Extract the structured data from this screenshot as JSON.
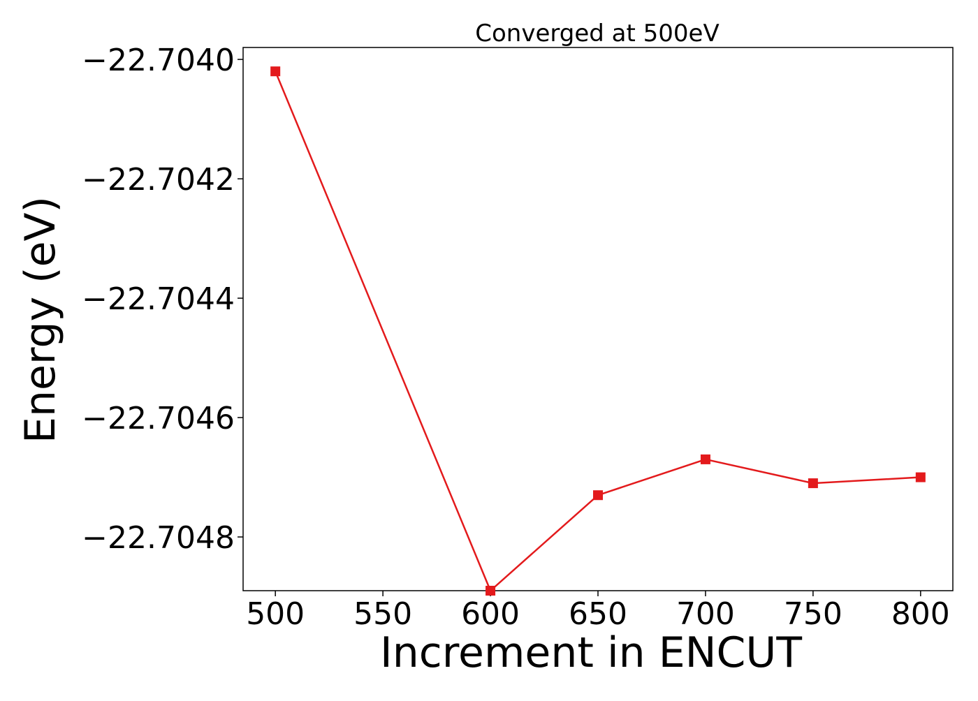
{
  "chart_data": {
    "type": "line",
    "title": "Converged at 500eV",
    "xlabel": "Increment in ENCUT",
    "ylabel": "Energy (eV)",
    "x": [
      500,
      600,
      650,
      700,
      750,
      800
    ],
    "series": [
      {
        "values": [
          -22.70402,
          -22.70489,
          -22.70473,
          -22.70467,
          -22.70471,
          -22.7047
        ],
        "color": "#e31a1c",
        "marker": "square"
      }
    ],
    "xlim": [
      485,
      815
    ],
    "ylim": [
      -22.70489,
      -22.70398
    ],
    "xticks": [
      500,
      550,
      600,
      650,
      700,
      750,
      800
    ],
    "xtick_labels": [
      "500",
      "550",
      "600",
      "650",
      "700",
      "750",
      "800"
    ],
    "yticks": [
      -22.704,
      -22.7042,
      -22.7044,
      -22.7046,
      -22.7048
    ],
    "ytick_labels": [
      "−22.7040",
      "−22.7042",
      "−22.7044",
      "−22.7046",
      "−22.7048"
    ],
    "grid": false,
    "legend": "none"
  }
}
